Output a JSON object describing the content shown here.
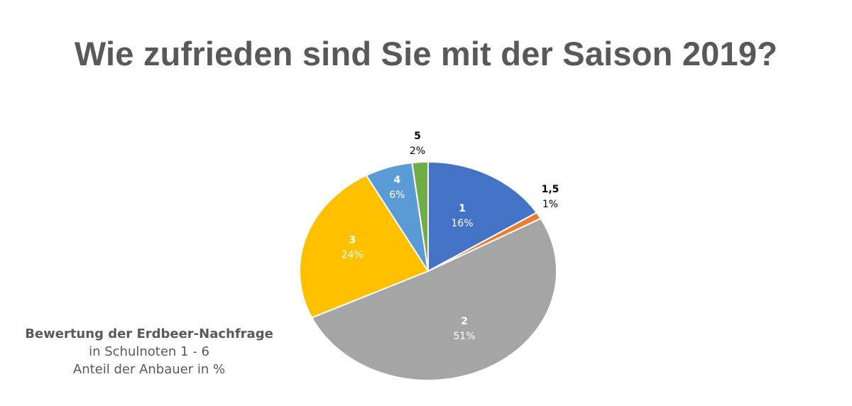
{
  "title": "Wie zufrieden sind Sie mit der Saison 2019?",
  "caption": {
    "line1": "Bewertung der Erdbeer-Nachfrage",
    "line2": "in Schulnoten 1 - 6",
    "line3": "Anteil der Anbauer in %"
  },
  "chart_data": {
    "type": "pie",
    "title": "Wie zufrieden sind Sie mit der Saison 2019?",
    "slices": [
      {
        "category": "1",
        "value": 16,
        "label": "16%",
        "color": "#4472C4"
      },
      {
        "category": "1,5",
        "value": 1,
        "label": "1%",
        "color": "#ED7D31"
      },
      {
        "category": "2",
        "value": 51,
        "label": "51%",
        "color": "#A5A5A5"
      },
      {
        "category": "3",
        "value": 24,
        "label": "24%",
        "color": "#FFC000"
      },
      {
        "category": "4",
        "value": 6,
        "label": "6%",
        "color": "#5B9BD5"
      },
      {
        "category": "5",
        "value": 2,
        "label": "2%",
        "color": "#70AD47"
      }
    ]
  }
}
